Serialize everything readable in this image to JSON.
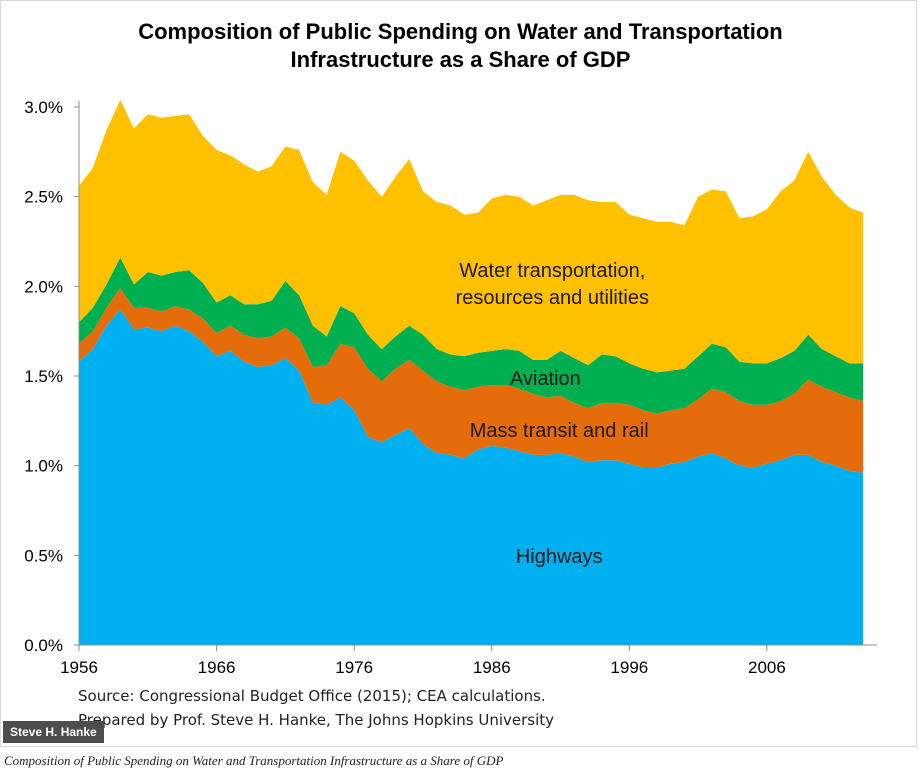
{
  "chart_data": {
    "type": "area",
    "stacked": true,
    "title": "Composition of Public Spending on Water and Transportation Infrastructure as a Share of GDP",
    "title_lines": [
      "Composition of Public Spending on Water and Transportation",
      "Infrastructure as a Share of GDP"
    ],
    "xlabel": "",
    "ylabel": "",
    "xlim": [
      1956,
      2014
    ],
    "ylim": [
      0,
      3.0
    ],
    "x_ticks": [
      1956,
      1966,
      1976,
      1986,
      1996,
      2006
    ],
    "x_tick_labels": [
      "1956",
      "1966",
      "1976",
      "1986",
      "1996",
      "2006"
    ],
    "y_ticks": [
      0,
      0.5,
      1.0,
      1.5,
      2.0,
      2.5,
      3.0
    ],
    "y_tick_labels": [
      "0.0%",
      "0.5%",
      "1.0%",
      "1.5%",
      "2.0%",
      "2.5%",
      "3.0%"
    ],
    "grid": false,
    "legend": "none (series labeled inside areas)",
    "x": [
      1956,
      1957,
      1958,
      1959,
      1960,
      1961,
      1962,
      1963,
      1964,
      1965,
      1966,
      1967,
      1968,
      1969,
      1970,
      1971,
      1972,
      1973,
      1974,
      1975,
      1976,
      1977,
      1978,
      1979,
      1980,
      1981,
      1982,
      1983,
      1984,
      1985,
      1986,
      1987,
      1988,
      1989,
      1990,
      1991,
      1992,
      1993,
      1994,
      1995,
      1996,
      1997,
      1998,
      1999,
      2000,
      2001,
      2002,
      2003,
      2004,
      2005,
      2006,
      2007,
      2008,
      2009,
      2010,
      2011,
      2012,
      2013
    ],
    "series": [
      {
        "name": "Highways",
        "color": "#00b0f0",
        "values": [
          1.58,
          1.65,
          1.78,
          1.87,
          1.76,
          1.77,
          1.75,
          1.78,
          1.75,
          1.69,
          1.61,
          1.64,
          1.58,
          1.55,
          1.56,
          1.6,
          1.53,
          1.35,
          1.34,
          1.38,
          1.31,
          1.16,
          1.13,
          1.17,
          1.21,
          1.12,
          1.07,
          1.06,
          1.04,
          1.09,
          1.11,
          1.1,
          1.08,
          1.06,
          1.06,
          1.07,
          1.05,
          1.02,
          1.03,
          1.03,
          1.01,
          0.99,
          0.99,
          1.01,
          1.02,
          1.05,
          1.07,
          1.04,
          1.0,
          0.99,
          1.01,
          1.03,
          1.06,
          1.06,
          1.02,
          1.0,
          0.97,
          0.96
        ]
      },
      {
        "name": "Mass transit and rail",
        "color": "#e46c0a",
        "values": [
          0.1,
          0.1,
          0.1,
          0.12,
          0.12,
          0.11,
          0.11,
          0.11,
          0.12,
          0.13,
          0.13,
          0.14,
          0.15,
          0.16,
          0.16,
          0.17,
          0.18,
          0.2,
          0.22,
          0.3,
          0.35,
          0.38,
          0.34,
          0.37,
          0.38,
          0.41,
          0.4,
          0.38,
          0.38,
          0.35,
          0.34,
          0.35,
          0.35,
          0.34,
          0.32,
          0.32,
          0.3,
          0.3,
          0.32,
          0.32,
          0.33,
          0.32,
          0.3,
          0.3,
          0.3,
          0.32,
          0.36,
          0.37,
          0.36,
          0.35,
          0.33,
          0.33,
          0.34,
          0.42,
          0.42,
          0.41,
          0.41,
          0.4
        ]
      },
      {
        "name": "Aviation",
        "color": "#00b050",
        "values": [
          0.12,
          0.13,
          0.13,
          0.17,
          0.13,
          0.2,
          0.2,
          0.19,
          0.22,
          0.2,
          0.17,
          0.17,
          0.17,
          0.19,
          0.2,
          0.26,
          0.24,
          0.23,
          0.16,
          0.21,
          0.19,
          0.19,
          0.18,
          0.18,
          0.19,
          0.2,
          0.18,
          0.18,
          0.19,
          0.19,
          0.19,
          0.2,
          0.21,
          0.19,
          0.21,
          0.25,
          0.25,
          0.24,
          0.27,
          0.26,
          0.23,
          0.23,
          0.23,
          0.22,
          0.22,
          0.24,
          0.25,
          0.25,
          0.22,
          0.23,
          0.23,
          0.24,
          0.24,
          0.25,
          0.21,
          0.2,
          0.19,
          0.21
        ]
      },
      {
        "name": "Water transportation, resources and utilities",
        "color": "#ffc000",
        "values": [
          0.76,
          0.78,
          0.86,
          0.88,
          0.87,
          0.88,
          0.88,
          0.87,
          0.87,
          0.82,
          0.85,
          0.78,
          0.78,
          0.74,
          0.75,
          0.75,
          0.81,
          0.8,
          0.79,
          0.86,
          0.85,
          0.86,
          0.85,
          0.89,
          0.93,
          0.8,
          0.82,
          0.83,
          0.79,
          0.78,
          0.85,
          0.86,
          0.86,
          0.86,
          0.89,
          0.87,
          0.91,
          0.92,
          0.85,
          0.86,
          0.83,
          0.84,
          0.84,
          0.83,
          0.8,
          0.89,
          0.86,
          0.87,
          0.8,
          0.82,
          0.86,
          0.93,
          0.95,
          1.02,
          0.96,
          0.9,
          0.87,
          0.84
        ]
      }
    ],
    "area_labels": {
      "highways": "Highways",
      "mass_transit": "Mass transit and rail",
      "aviation": "Aviation",
      "water_line1": "Water transportation,",
      "water_line2": "resources and utilities"
    }
  },
  "source_line1": "Source: Congressional Budget Office (2015); CEA calculations.",
  "source_line2": "Prepared by Prof. Steve H. Hanke, The Johns Hopkins University",
  "credit_badge": "Steve H. Hanke",
  "caption": "Composition of Public Spending on Water and Transportation Infrastructure as a Share of GDP"
}
